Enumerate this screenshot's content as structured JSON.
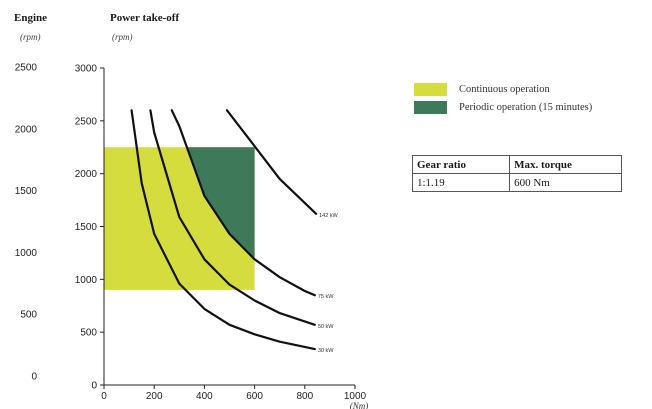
{
  "header": {
    "engine_title": "Engine",
    "engine_unit": "(rpm)",
    "pto_title": "Power take-off",
    "pto_unit": "(rpm)"
  },
  "legend": [
    {
      "label": "Continuous operation",
      "color": "#d4dc3e"
    },
    {
      "label": "Periodic operation (15 minutes)",
      "color": "#3e7a5a"
    }
  ],
  "table": {
    "headers": [
      "Gear ratio",
      "Max. torque"
    ],
    "rows": [
      [
        "1:1.19",
        "600 Nm"
      ]
    ]
  },
  "chart_data": {
    "type": "area",
    "xlabel": "(Nm)",
    "xlim": [
      0,
      1000
    ],
    "ylim": [
      0,
      3000
    ],
    "x_ticks": [
      0,
      200,
      400,
      600,
      800,
      1000
    ],
    "y_ticks": [
      0,
      500,
      1000,
      1500,
      2000,
      2500,
      3000
    ],
    "engine_axis": {
      "label": "Engine",
      "unit": "(rpm)",
      "ticks": [
        0,
        500,
        1000,
        1500,
        2000,
        2500
      ]
    },
    "regions": [
      {
        "name": "Continuous operation",
        "color": "#d4dc3e",
        "x_range": [
          0,
          600
        ],
        "y_range": [
          900,
          2250
        ]
      },
      {
        "name": "Periodic operation (15 minutes)",
        "color": "#3e7a5a",
        "bounds": "between 75 kW curve and 600 Nm limit",
        "x_range": [
          300,
          600
        ],
        "y_range": [
          1000,
          2250
        ]
      }
    ],
    "series": [
      {
        "name": "142 kW",
        "label": "142 kW",
        "points": [
          [
            490,
            2600
          ],
          [
            600,
            2260
          ],
          [
            700,
            1950
          ],
          [
            845,
            1620
          ]
        ]
      },
      {
        "name": "75 kW",
        "label": "75 kW",
        "points": [
          [
            270,
            2600
          ],
          [
            300,
            2450
          ],
          [
            400,
            1790
          ],
          [
            500,
            1430
          ],
          [
            600,
            1190
          ],
          [
            700,
            1020
          ],
          [
            800,
            890
          ],
          [
            840,
            850
          ]
        ]
      },
      {
        "name": "50 kW",
        "label": "50 kW",
        "points": [
          [
            185,
            2600
          ],
          [
            200,
            2390
          ],
          [
            300,
            1590
          ],
          [
            400,
            1190
          ],
          [
            500,
            950
          ],
          [
            600,
            800
          ],
          [
            700,
            680
          ],
          [
            840,
            570
          ]
        ]
      },
      {
        "name": "30 kW",
        "label": "30 kW",
        "points": [
          [
            110,
            2600
          ],
          [
            150,
            1910
          ],
          [
            200,
            1430
          ],
          [
            300,
            960
          ],
          [
            400,
            720
          ],
          [
            500,
            570
          ],
          [
            600,
            480
          ],
          [
            700,
            410
          ],
          [
            840,
            340
          ]
        ]
      }
    ]
  }
}
